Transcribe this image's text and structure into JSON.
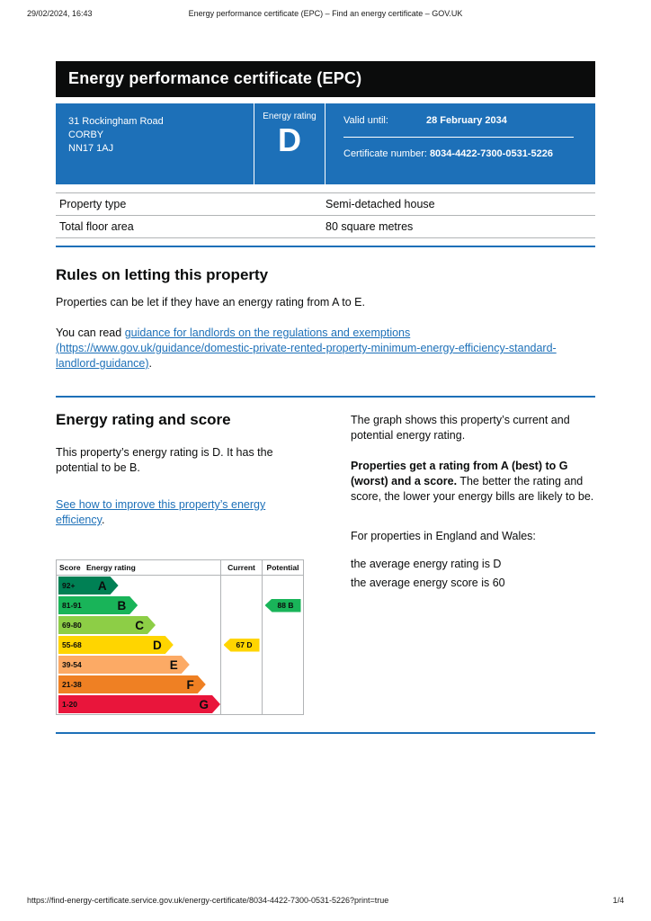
{
  "print_header": {
    "datetime": "29/02/2024, 16:43",
    "title": "Energy performance certificate (EPC) – Find an energy certificate – GOV.UK"
  },
  "banner": {
    "title": "Energy performance certificate (EPC)"
  },
  "summary_box": {
    "background_color": "#1d70b8",
    "address": [
      "31 Rockingham Road",
      "CORBY",
      "NN17 1AJ"
    ],
    "energy_rating_label": "Energy rating",
    "energy_rating": "D",
    "valid_until_label": "Valid until:",
    "valid_until_value": "28 February 2034",
    "certificate_number_label": "Certificate number:",
    "certificate_number_value": "8034-4422-7300-0531-5226"
  },
  "property_details": {
    "rows": [
      {
        "label": "Property type",
        "value": "Semi-detached house"
      },
      {
        "label": "Total floor area",
        "value": "80 square metres"
      }
    ]
  },
  "letting_rules": {
    "heading": "Rules on letting this property",
    "paragraph": "Properties can be let if they have an energy rating from A to E.",
    "read_prefix": "You can read ",
    "guidance_link": "guidance for landlords on the regulations and exemptions (https://www.gov.uk/guidance/domestic-private-rented-property-minimum-energy-efficiency-standard-landlord-guidance)",
    "read_suffix": "."
  },
  "rating_section": {
    "heading": "Energy rating and score",
    "intro": "This property’s energy rating is D. It has the potential to be B.",
    "improve_link": "See how to improve this property’s energy efficiency",
    "improve_suffix": ".",
    "graph_caption": "The graph shows this property’s current and potential energy rating.",
    "explain_bold": "Properties get a rating from A (best) to G (worst) and a score.",
    "explain_rest": " The better the rating and score, the lower your energy bills are likely to be.",
    "averages_intro": "For properties in England and Wales:",
    "average_rating": "the average energy rating is D",
    "average_score": "the average energy score is 60"
  },
  "chart_data": {
    "type": "epc-rating-bands",
    "title": "Energy rating and score",
    "columns": [
      "Score",
      "Energy rating",
      "Current",
      "Potential"
    ],
    "bands": [
      {
        "score": "92+",
        "letter": "A",
        "color": "#008054",
        "width_pct": 37
      },
      {
        "score": "81-91",
        "letter": "B",
        "color": "#19b459",
        "width_pct": 49
      },
      {
        "score": "69-80",
        "letter": "C",
        "color": "#8dce46",
        "width_pct": 60
      },
      {
        "score": "55-68",
        "letter": "D",
        "color": "#ffd500",
        "width_pct": 71
      },
      {
        "score": "39-54",
        "letter": "E",
        "color": "#fcaa65",
        "width_pct": 81
      },
      {
        "score": "21-38",
        "letter": "F",
        "color": "#ef8023",
        "width_pct": 91
      },
      {
        "score": "1-20",
        "letter": "G",
        "color": "#e9153b",
        "width_pct": 100
      }
    ],
    "current": {
      "score": 67,
      "letter": "D",
      "color": "#ffd500"
    },
    "potential": {
      "score": 88,
      "letter": "B",
      "color": "#19b459"
    }
  },
  "footer": {
    "url": "https://find-energy-certificate.service.gov.uk/energy-certificate/8034-4422-7300-0531-5226?print=true",
    "page_indicator": "1/4"
  },
  "colors": {
    "govuk_blue": "#1d70b8",
    "banner_black": "#0b0c0c",
    "border_gray": "#b1b4b6",
    "link_blue": "#1d70b8"
  }
}
